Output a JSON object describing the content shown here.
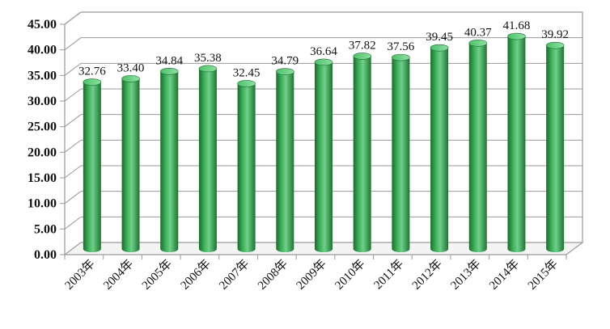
{
  "chart_data": {
    "type": "bar",
    "categories": [
      "2003年",
      "2004年",
      "2005年",
      "2006年",
      "2007年",
      "2008年",
      "2009年",
      "2010年",
      "2011年",
      "2012年",
      "2013年",
      "2014年",
      "2015年"
    ],
    "values": [
      32.76,
      33.4,
      34.84,
      35.38,
      32.45,
      34.79,
      36.64,
      37.82,
      37.56,
      39.45,
      40.37,
      41.68,
      39.92
    ],
    "data_labels": [
      "32.76",
      "33.40",
      "34.84",
      "35.38",
      "32.45",
      "34.79",
      "36.64",
      "37.82",
      "37.56",
      "39.45",
      "40.37",
      "41.68",
      "39.92"
    ],
    "ylim": [
      0,
      45
    ],
    "yticks": [
      "0.00",
      "5.00",
      "10.00",
      "15.00",
      "20.00",
      "25.00",
      "30.00",
      "35.00",
      "40.00",
      "45.00"
    ],
    "grid": true,
    "style": "3d-cylinder",
    "colors": {
      "bar": "#2e9a48",
      "bar_light": "#6fd08a",
      "bar_dark": "#1b6b2e",
      "grid": "#9a9a9a"
    }
  }
}
